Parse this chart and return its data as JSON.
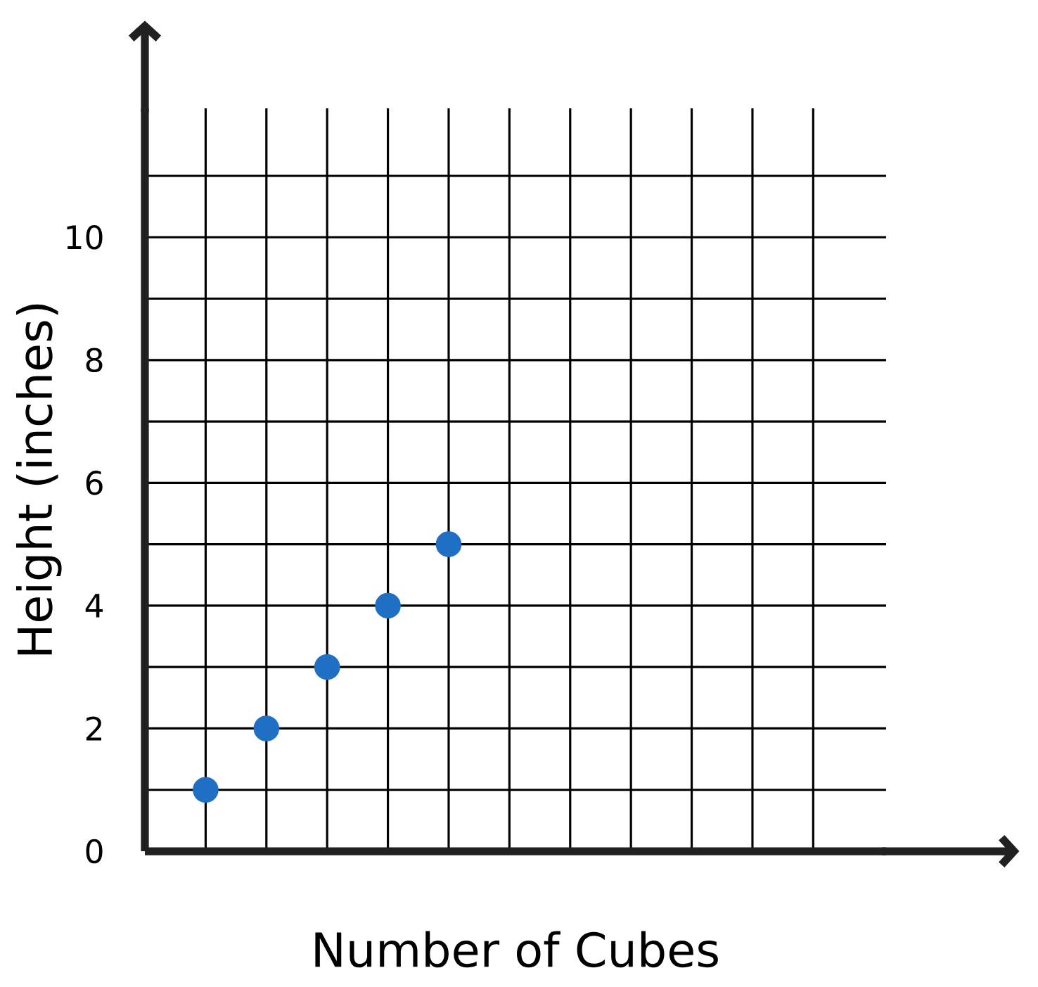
{
  "chart_data": {
    "type": "scatter",
    "xlabel": "Number of Cubes",
    "ylabel": "Height (inches)",
    "categories": [
      null,
      null,
      null,
      null,
      null,
      null,
      null,
      null,
      null,
      null,
      null
    ],
    "series": [
      {
        "color": "#1f6fc5",
        "values": [
          1,
          2,
          3,
          4,
          5,
          null,
          null,
          null,
          null,
          null,
          null
        ]
      }
    ],
    "ylim": [
      0,
      12.1
    ],
    "yticks": [
      {
        "value": 0,
        "label": "0"
      },
      {
        "value": 1,
        "label": null
      },
      {
        "value": 2,
        "label": "2"
      },
      {
        "value": 3,
        "label": null
      },
      {
        "value": 4,
        "label": "4"
      },
      {
        "value": 5,
        "label": null
      },
      {
        "value": 6,
        "label": "6"
      },
      {
        "value": 7,
        "label": null
      },
      {
        "value": 8,
        "label": "8"
      },
      {
        "value": 9,
        "label": null
      },
      {
        "value": 10,
        "label": "10"
      },
      {
        "value": 11,
        "label": null
      }
    ],
    "grid": true,
    "tick_labels": "y"
  }
}
